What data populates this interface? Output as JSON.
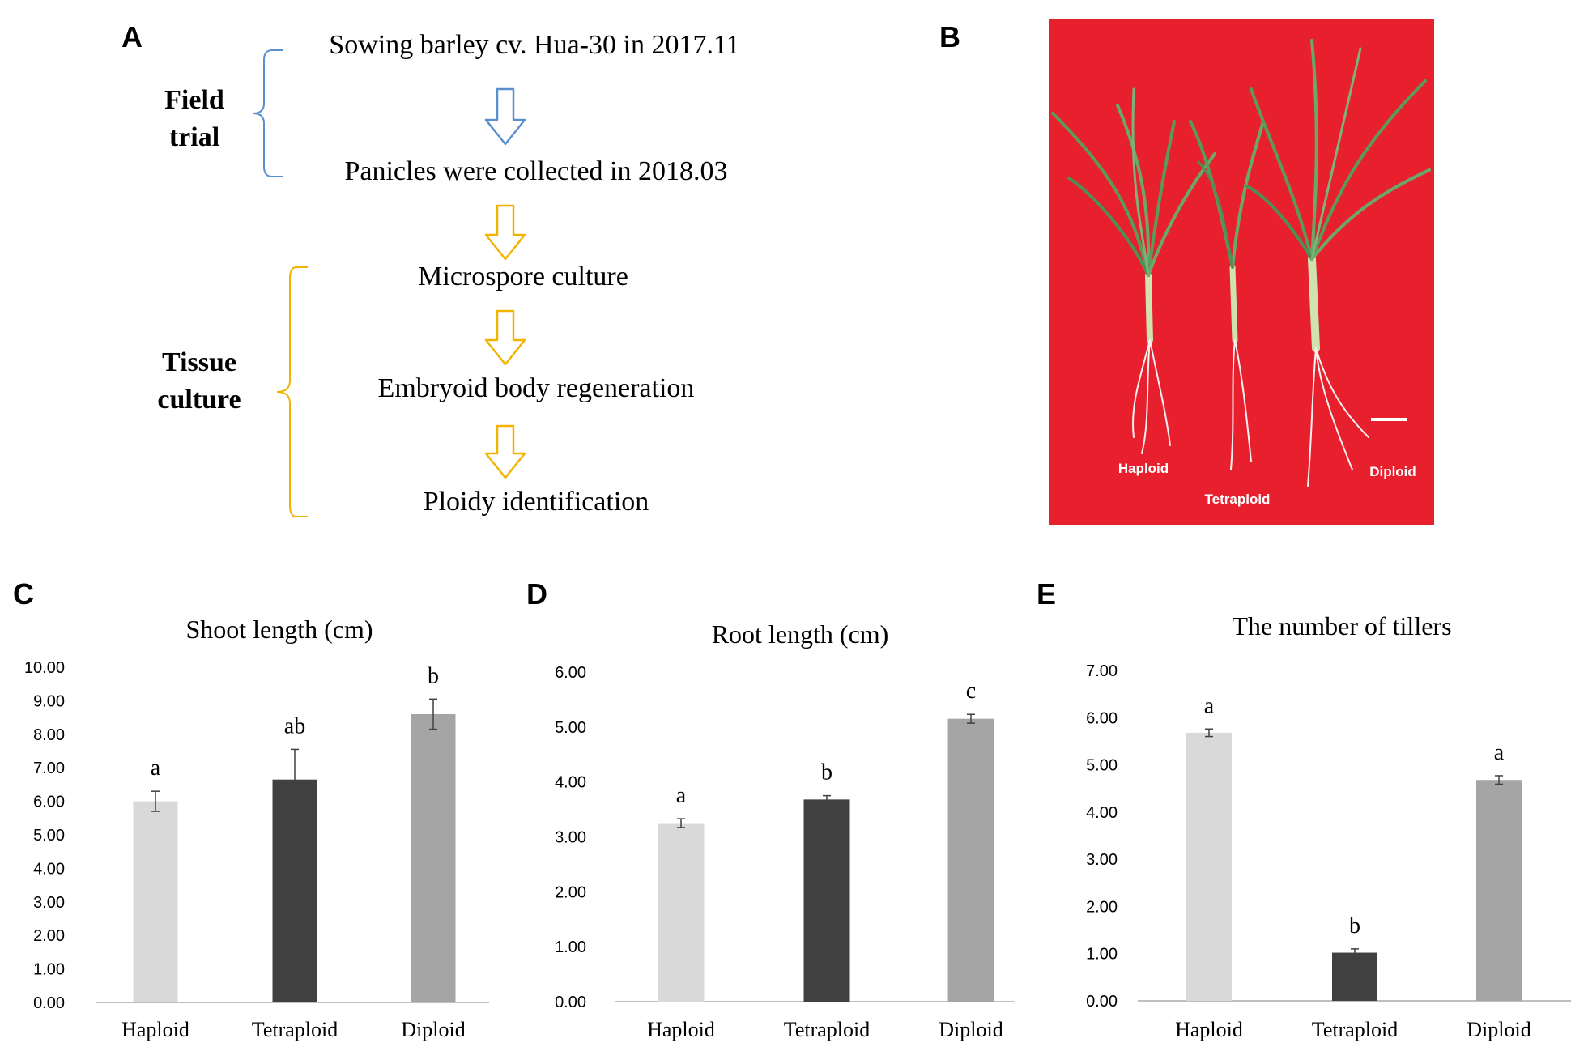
{
  "panel_labels": {
    "a": "A",
    "b": "B",
    "c": "C",
    "d": "D",
    "e": "E"
  },
  "flowchart": {
    "group_field_line1": "Field",
    "group_field_line2": "trial",
    "group_tissue_line1": "Tissue",
    "group_tissue_line2": "culture",
    "steps": [
      "Sowing barley cv. Hua-30 in 2017.11",
      "Panicles were collected in 2018.03",
      "Microspore culture",
      "Embryoid body regeneration",
      "Ploidy identification"
    ],
    "colors": {
      "field": "#5b8fd0",
      "tissue": "#f2b400"
    }
  },
  "photo": {
    "labels": {
      "haploid": "Haploid",
      "tetraploid": "Tetraploid",
      "diploid": "Diploid"
    },
    "background_color": "#e8202e"
  },
  "bar_colors": {
    "haploid": "#d9d9d9",
    "tetraploid": "#404040",
    "diploid": "#a5a5a5"
  },
  "chart_data": [
    {
      "type": "bar",
      "panel": "C",
      "title": "Shoot length (cm)",
      "categories": [
        "Haploid",
        "Tetraploid",
        "Diploid"
      ],
      "values": [
        6.0,
        6.65,
        8.6
      ],
      "errors": [
        0.3,
        0.9,
        0.45
      ],
      "significance": [
        "a",
        "ab",
        "b"
      ],
      "ylim": [
        0,
        10
      ],
      "yticks": [
        "0.00",
        "1.00",
        "2.00",
        "3.00",
        "4.00",
        "5.00",
        "6.00",
        "7.00",
        "8.00",
        "9.00",
        "10.00"
      ]
    },
    {
      "type": "bar",
      "panel": "D",
      "title": "Root length (cm)",
      "categories": [
        "Haploid",
        "Tetraploid",
        "Diploid"
      ],
      "values": [
        3.25,
        3.68,
        5.15
      ],
      "errors": [
        0.08,
        0.07,
        0.08
      ],
      "significance": [
        "a",
        "b",
        "c"
      ],
      "ylim": [
        0,
        6
      ],
      "yticks": [
        "0.00",
        "1.00",
        "2.00",
        "3.00",
        "4.00",
        "5.00",
        "6.00"
      ]
    },
    {
      "type": "bar",
      "panel": "E",
      "title": "The number of tillers",
      "categories": [
        "Haploid",
        "Tetraploid",
        "Diploid"
      ],
      "values": [
        5.68,
        1.02,
        4.68
      ],
      "errors": [
        0.08,
        0.08,
        0.09
      ],
      "significance": [
        "a",
        "b",
        "a"
      ],
      "ylim": [
        0,
        7
      ],
      "yticks": [
        "0.00",
        "1.00",
        "2.00",
        "3.00",
        "4.00",
        "5.00",
        "6.00",
        "7.00"
      ]
    }
  ]
}
